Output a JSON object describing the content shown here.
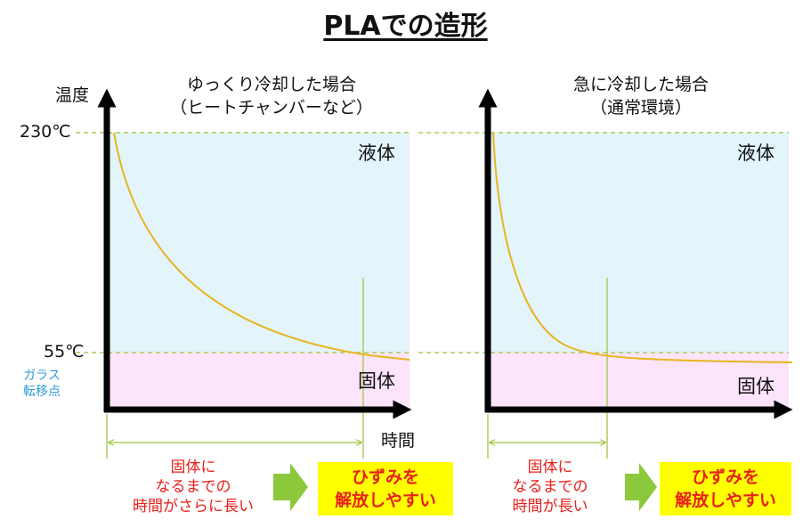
{
  "title": "PLAでの造形",
  "y_axis_label": "温度",
  "x_axis_label": "時間",
  "temp_high": "230℃",
  "temp_low": "55℃",
  "glass_point_line1": "ガラス",
  "glass_point_line2": "転移点",
  "left_panel": {
    "caption_line1": "ゆっくり冷却した場合",
    "caption_line2": "（ヒートチャンバーなど）",
    "liquid_label": "液体",
    "solid_label": "固体",
    "time_note_line1": "固体に",
    "time_note_line2": "なるまでの",
    "time_note_line3": "時間がさらに長い",
    "result_line1": "ひずみを",
    "result_line2": "解放しやすい"
  },
  "right_panel": {
    "caption_line1": "急に冷却した場合",
    "caption_line2": "（通常環境）",
    "liquid_label": "液体",
    "solid_label": "固体",
    "time_note_line1": "固体に",
    "time_note_line2": "なるまでの",
    "time_note_line3": "時間が長い",
    "result_line1": "ひずみを",
    "result_line2": "解放しやすい"
  },
  "colors": {
    "liquid_fill": "#e3f4fa",
    "solid_fill": "#fce4fa",
    "curve": "#e8b420",
    "dashed_guide": "#9bc23a",
    "arrow_green": "#8cc83c",
    "axis": "#000000",
    "emphasis_red": "#e8201a",
    "highlight_yellow": "#ffff00",
    "glass_blue": "#2e9bd6"
  }
}
